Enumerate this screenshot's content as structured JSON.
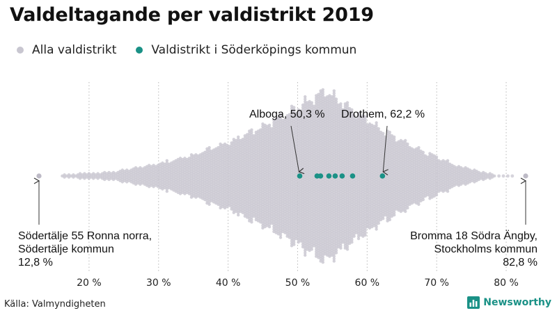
{
  "title": "Valdeltagande per valdistrikt 2019",
  "legend": {
    "all": {
      "label": "Alla valdistrikt",
      "color": "#c8c6d0"
    },
    "highlight": {
      "label": "Valdistrikt i Söderköpings kommun",
      "color": "#1a9186"
    }
  },
  "source": "Källa: Valmyndigheten",
  "brand": {
    "name": "Newsworthy",
    "color": "#1a9186"
  },
  "chart_data": {
    "type": "scatter",
    "subtype": "beeswarm",
    "title": "Valdeltagande per valdistrikt 2019",
    "xlim": [
      12.8,
      82.8
    ],
    "ticks": [
      20,
      30,
      40,
      50,
      60,
      70,
      80
    ],
    "tick_labels": [
      "20 %",
      "30 %",
      "40 %",
      "50 %",
      "60 %",
      "70 %",
      "80 %"
    ],
    "grid": "vertical dotted",
    "highlight_values": [
      50.3,
      52.8,
      53.3,
      54.5,
      55.4,
      56.4,
      57.9,
      62.2
    ],
    "extremes": {
      "min": 12.8,
      "max": 82.8
    },
    "annotations": [
      {
        "id": "min",
        "line1": "Södertälje 55 Ronna norra,",
        "line2": "Södertälje kommun",
        "line3": "12,8 %",
        "value": 12.8
      },
      {
        "id": "max",
        "line1": "Bromma 18 Södra Ängby,",
        "line2": "Stockholms kommun",
        "line3": "82,8 %",
        "value": 82.8
      },
      {
        "id": "alboga",
        "text": "Alboga, 50,3 %",
        "value": 50.3
      },
      {
        "id": "drothem",
        "text": "Drothem, 62,2 %",
        "value": 62.2
      }
    ]
  }
}
